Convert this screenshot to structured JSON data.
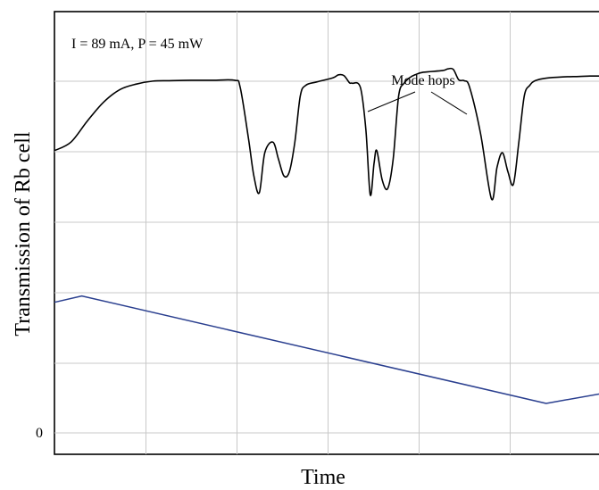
{
  "chart_data": {
    "type": "line",
    "xlabel": "Time",
    "ylabel": "Transmission of Rb cell",
    "annotation": "I = 89 mA, P = 45 mW",
    "callout": "Mode hops",
    "y_tick_labels": [
      "0"
    ],
    "grid": true,
    "xlim": [
      0,
      100
    ],
    "ylim": [
      0,
      100
    ],
    "series": [
      {
        "color": "#000000",
        "x": [
          0,
          3,
          6,
          9,
          12,
          15,
          18,
          21,
          25,
          29,
          33,
          34,
          35.5,
          36.5,
          37.5,
          38.5,
          40,
          41,
          42,
          43,
          44,
          45,
          46,
          48,
          51,
          52,
          53,
          54,
          54.5,
          56,
          57,
          57.8,
          58.5,
          59,
          60,
          61,
          62,
          63,
          64,
          65,
          66,
          67.5,
          71,
          72,
          73,
          74,
          75,
          76,
          78,
          80,
          81,
          82,
          83,
          84,
          85,
          86,
          87,
          88,
          90,
          93,
          96,
          98,
          100
        ],
        "y": [
          67,
          69,
          74,
          78.5,
          81.5,
          82.8,
          83.5,
          83.6,
          83.7,
          83.7,
          83.7,
          82,
          70,
          61,
          57,
          66.5,
          69,
          65,
          61,
          62,
          69,
          80,
          82.5,
          83.3,
          84.3,
          85,
          84.8,
          83.1,
          83,
          82,
          72,
          56.5,
          64,
          67,
          60,
          58,
          65,
          80,
          83,
          84.3,
          85,
          85.6,
          86,
          86.4,
          86.3,
          83.8,
          83.6,
          82,
          71,
          55.5,
          63,
          66.5,
          62,
          59,
          69,
          80,
          82.5,
          83.6,
          84.2,
          84.5,
          84.6,
          84.7,
          84.7
        ]
      },
      {
        "color": "#2a3f8f",
        "x": [
          0,
          5,
          90,
          100
        ],
        "y": [
          31,
          32.5,
          7,
          9.3
        ]
      }
    ]
  }
}
